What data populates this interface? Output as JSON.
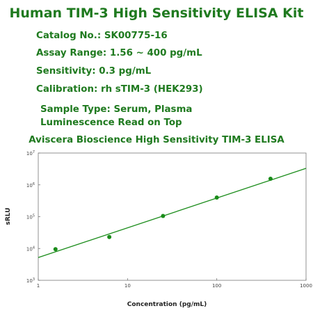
{
  "header": {
    "title": "Human TIM-3 High Sensitivity ELISA Kit",
    "catalog": "Catalog No.: SK00775-16",
    "assay_range": "Assay Range: 1.56 ~ 400 pg/mL",
    "sensitivity": "Sensitivity: 0.3 pg/mL",
    "calibration": "Calibration: rh sTIM-3 (HEK293)",
    "sample_type": "Sample Type: Serum, Plasma",
    "read_mode": "Luminescence Read on Top"
  },
  "colors": {
    "accent": "#1f7a1f",
    "series": "#1a8c1a"
  },
  "chart_data": {
    "type": "scatter",
    "title": "Aviscera Bioscience High Sensitivity TIM-3 ELISA",
    "xlabel": "Concentration (pg/mL)",
    "ylabel": "sRLU",
    "x_scale": "log",
    "y_scale": "log",
    "xlim": [
      1,
      1000
    ],
    "ylim": [
      1000,
      10000000
    ],
    "x_ticks": [
      1,
      10,
      100,
      1000
    ],
    "x_tick_labels": [
      "1",
      "10",
      "100",
      "1000"
    ],
    "y_ticks": [
      1000,
      10000,
      100000,
      1000000,
      10000000
    ],
    "y_tick_labels": [
      {
        "base": "10",
        "exp": "3"
      },
      {
        "base": "10",
        "exp": "4"
      },
      {
        "base": "10",
        "exp": "5"
      },
      {
        "base": "10",
        "exp": "6"
      },
      {
        "base": "10",
        "exp": "7"
      }
    ],
    "grid": false,
    "points": [
      {
        "x": 1.56,
        "y": 9500
      },
      {
        "x": 6.25,
        "y": 23000
      },
      {
        "x": 25,
        "y": 105000
      },
      {
        "x": 100,
        "y": 400000
      },
      {
        "x": 400,
        "y": 1550000
      }
    ],
    "fit_line": {
      "x": [
        1,
        1000
      ],
      "y": [
        5200,
        3300000
      ]
    }
  }
}
